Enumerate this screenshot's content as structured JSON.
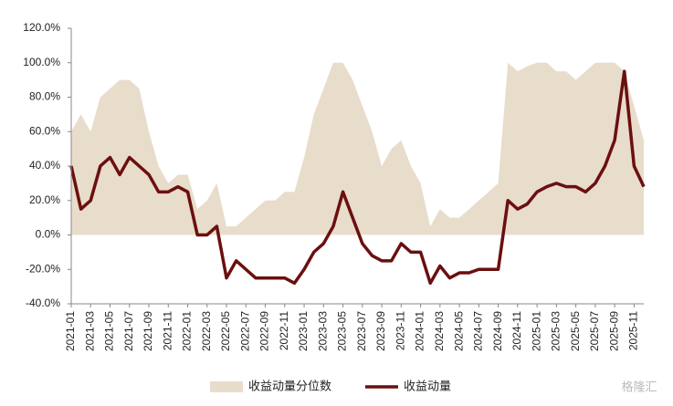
{
  "chart_data": {
    "type": "line",
    "categories": [
      "2021-01",
      null,
      "2021-03",
      null,
      "2021-05",
      null,
      "2021-07",
      null,
      "2021-09",
      null,
      "2021-11",
      null,
      "2022-01",
      null,
      "2022-03",
      null,
      "2022-05",
      null,
      "2022-07",
      null,
      "2022-09",
      null,
      "2022-11",
      null,
      "2023-01",
      null,
      "2023-03",
      null,
      "2023-05",
      null,
      "2023-07",
      null,
      "2023-09",
      null,
      "2023-11",
      null,
      "2024-01",
      null,
      "2024-03",
      null,
      "2024-05",
      null,
      "2024-07",
      null,
      "2024-09",
      null,
      "2024-11",
      null,
      "2025-01",
      null,
      "2025-03",
      null,
      "2025-05",
      null,
      "2025-07",
      null,
      "2025-09",
      null,
      "2025-11",
      null
    ],
    "series": [
      {
        "name": "收益动量分位数",
        "color": "#e8dccb",
        "kind": "area",
        "values": [
          60,
          70,
          60,
          80,
          85,
          90,
          90,
          85,
          60,
          40,
          30,
          35,
          35,
          15,
          20,
          30,
          5,
          5,
          10,
          15,
          20,
          20,
          25,
          25,
          45,
          70,
          85,
          100,
          100,
          90,
          75,
          60,
          40,
          50,
          55,
          40,
          30,
          5,
          15,
          10,
          10,
          15,
          20,
          25,
          30,
          100,
          95,
          98,
          100,
          100,
          95,
          95,
          90,
          95,
          100,
          100,
          100,
          95,
          75,
          55
        ]
      },
      {
        "name": "收益动量",
        "color": "#6b0f0f",
        "kind": "line",
        "values": [
          40,
          15,
          20,
          40,
          45,
          35,
          45,
          40,
          35,
          25,
          25,
          28,
          25,
          0,
          0,
          5,
          -25,
          -15,
          -20,
          -25,
          -25,
          -25,
          -25,
          -28,
          -20,
          -10,
          -5,
          5,
          25,
          10,
          -5,
          -12,
          -15,
          -15,
          -5,
          -10,
          -10,
          -28,
          -18,
          -25,
          -22,
          -22,
          -20,
          -20,
          -20,
          20,
          15,
          18,
          25,
          28,
          30,
          28,
          28,
          25,
          30,
          40,
          55,
          95,
          40,
          28
        ]
      }
    ],
    "ylim": [
      -40,
      120
    ],
    "yticks": [
      {
        "value": -40,
        "label": "-40.0%"
      },
      {
        "value": -20,
        "label": "-20.0%"
      },
      {
        "value": 0,
        "label": "0.0%"
      },
      {
        "value": 20,
        "label": "20.0%"
      },
      {
        "value": 40,
        "label": "40.0%"
      },
      {
        "value": 60,
        "label": "60.0%"
      },
      {
        "value": 80,
        "label": "80.0%"
      },
      {
        "value": 100,
        "label": "100.0%"
      },
      {
        "value": 120,
        "label": "120.0%"
      }
    ],
    "legend": "bottom",
    "watermark": "格隆汇"
  }
}
